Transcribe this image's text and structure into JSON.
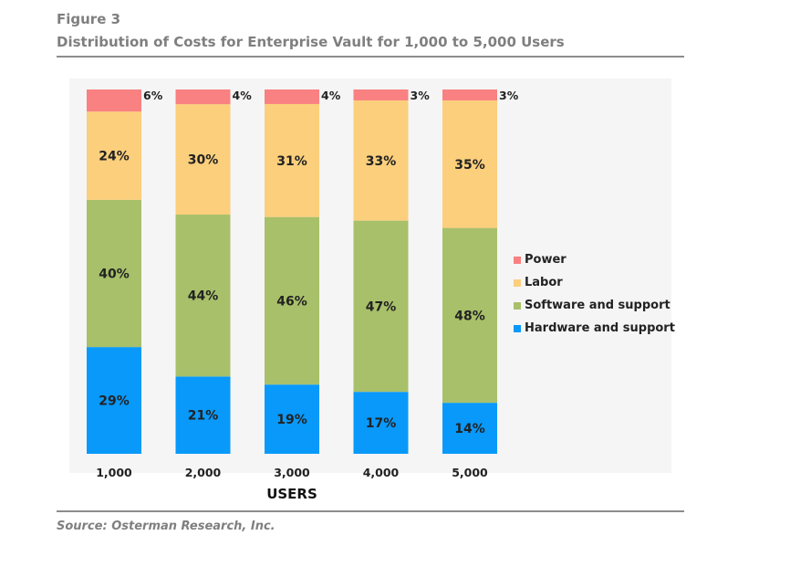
{
  "figure": {
    "label": "Figure 3",
    "title": "Distribution of Costs for Enterprise Vault for 1,000 to 5,000 Users",
    "source": "Source: Osterman Research, Inc."
  },
  "chart_data": {
    "type": "bar",
    "stacked": true,
    "categories": [
      "1,000",
      "2,000",
      "3,000",
      "4,000",
      "5,000"
    ],
    "xlabel": "USERS",
    "ylabel": "",
    "series": [
      {
        "name": "Hardware and support",
        "color": "#0899fa",
        "values": [
          29,
          21,
          19,
          17,
          14
        ],
        "labels": [
          "29%",
          "21%",
          "19%",
          "17%",
          "14%"
        ]
      },
      {
        "name": "Software and support",
        "color": "#a8c06a",
        "values": [
          40,
          44,
          46,
          47,
          48
        ],
        "labels": [
          "40%",
          "44%",
          "46%",
          "47%",
          "48%"
        ]
      },
      {
        "name": "Labor",
        "color": "#fbcf7c",
        "values": [
          24,
          30,
          31,
          33,
          35
        ],
        "labels": [
          "24%",
          "30%",
          "31%",
          "33%",
          "35%"
        ]
      },
      {
        "name": "Power",
        "color": "#f98181",
        "values": [
          6,
          4,
          4,
          3,
          3
        ],
        "labels": [
          "6%",
          "4%",
          "4%",
          "3%",
          "3%"
        ]
      }
    ],
    "legend_position": "right",
    "legend_order": [
      "Power",
      "Labor",
      "Software and support",
      "Hardware and support"
    ]
  }
}
